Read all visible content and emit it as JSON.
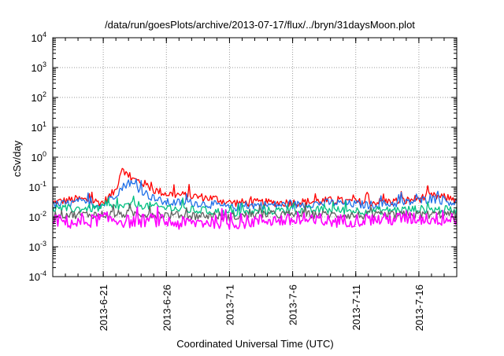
{
  "chart_data": {
    "type": "line",
    "title": "/data/run/goesPlots/archive/2013-07-17/flux/../bryn/31daysMoon.plot",
    "xlabel": "Coordinated Universal Time (UTC)",
    "ylabel": "cSv/day",
    "yscale": "log",
    "ylim": [
      0.0001,
      10000
    ],
    "y_ticks": [
      {
        "base": "10",
        "exp": "-4"
      },
      {
        "base": "10",
        "exp": "-3"
      },
      {
        "base": "10",
        "exp": "-2"
      },
      {
        "base": "10",
        "exp": "-1"
      },
      {
        "base": "10",
        "exp": "0"
      },
      {
        "base": "10",
        "exp": "1"
      },
      {
        "base": "10",
        "exp": "2"
      },
      {
        "base": "10",
        "exp": "3"
      },
      {
        "base": "10",
        "exp": "4"
      }
    ],
    "xlim": [
      "2013-06-17",
      "2013-07-19"
    ],
    "x_ticks": [
      "2013-6-21",
      "2013-6-26",
      "2013-7-1",
      "2013-7-6",
      "2013-7-11",
      "2013-7-16"
    ],
    "grid": true,
    "series": [
      {
        "color": "#ff0000",
        "x": [
          "2013-06-17",
          "2013-06-19",
          "2013-06-21",
          "2013-06-22",
          "2013-06-22 12:00",
          "2013-06-23",
          "2013-06-24",
          "2013-06-25",
          "2013-06-26",
          "2013-06-28",
          "2013-06-30",
          "2013-07-01",
          "2013-07-03",
          "2013-07-06",
          "2013-07-09",
          "2013-07-12",
          "2013-07-15",
          "2013-07-17",
          "2013-07-19"
        ],
        "y": [
          0.03,
          0.04,
          0.03,
          0.08,
          0.5,
          0.2,
          0.15,
          0.08,
          0.06,
          0.05,
          0.04,
          0.03,
          0.03,
          0.03,
          0.035,
          0.03,
          0.035,
          0.05,
          0.04
        ]
      },
      {
        "color": "#1f6fe8",
        "x": [
          "2013-06-17",
          "2013-06-19",
          "2013-06-21",
          "2013-06-22",
          "2013-06-23",
          "2013-06-24",
          "2013-06-25",
          "2013-06-26",
          "2013-06-28",
          "2013-06-30",
          "2013-07-01",
          "2013-07-03",
          "2013-07-06",
          "2013-07-09",
          "2013-07-12",
          "2013-07-15",
          "2013-07-17",
          "2013-07-19"
        ],
        "y": [
          0.025,
          0.03,
          0.025,
          0.06,
          0.15,
          0.08,
          0.04,
          0.03,
          0.03,
          0.025,
          0.02,
          0.025,
          0.025,
          0.03,
          0.025,
          0.03,
          0.04,
          0.03
        ]
      },
      {
        "color": "#00c080",
        "x": [
          "2013-06-17",
          "2013-06-21",
          "2013-06-24",
          "2013-06-27",
          "2013-06-30",
          "2013-07-01",
          "2013-07-04",
          "2013-07-08",
          "2013-07-12",
          "2013-07-16",
          "2013-07-19"
        ],
        "y": [
          0.018,
          0.02,
          0.025,
          0.018,
          0.015,
          0.013,
          0.016,
          0.017,
          0.016,
          0.018,
          0.017
        ]
      },
      {
        "color": "#606060",
        "x": [
          "2013-06-17",
          "2013-06-21",
          "2013-06-24",
          "2013-06-27",
          "2013-06-30",
          "2013-07-01",
          "2013-07-04",
          "2013-07-08",
          "2013-07-12",
          "2013-07-16",
          "2013-07-19"
        ],
        "y": [
          0.012,
          0.012,
          0.013,
          0.011,
          0.011,
          0.01,
          0.012,
          0.012,
          0.011,
          0.012,
          0.012
        ]
      },
      {
        "color": "#ff00ff",
        "x": [
          "2013-06-17",
          "2013-06-19",
          "2013-06-21",
          "2013-06-23",
          "2013-06-25",
          "2013-06-27",
          "2013-06-30",
          "2013-07-01",
          "2013-07-04",
          "2013-07-08",
          "2013-07-12",
          "2013-07-16",
          "2013-07-19"
        ],
        "y": [
          0.008,
          0.006,
          0.009,
          0.007,
          0.008,
          0.006,
          0.007,
          0.006,
          0.008,
          0.007,
          0.008,
          0.009,
          0.008
        ]
      }
    ]
  }
}
